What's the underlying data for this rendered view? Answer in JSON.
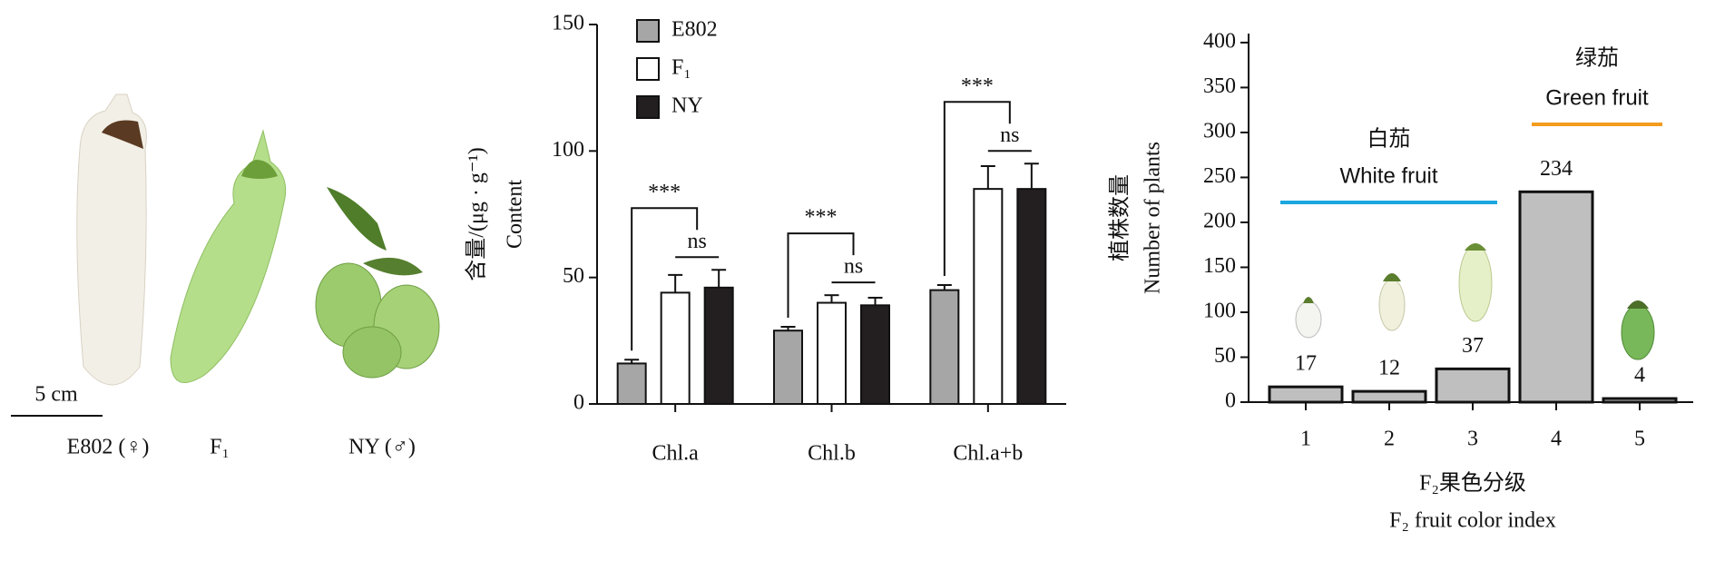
{
  "photo_panel": {
    "scale_bar": "5 cm",
    "labels": [
      "E802 (♀)",
      "F₁",
      "NY (♂)"
    ]
  },
  "chart_data": [
    {
      "type": "bar",
      "y_title": "含量/(μg · g⁻¹)",
      "y_title2": "Content",
      "categories": [
        "Chl.a",
        "Chl.b",
        "Chl.a+b"
      ],
      "series": [
        {
          "name": "E802",
          "color": "#a6a6a6",
          "values": [
            16,
            29,
            45
          ],
          "errors": [
            1.5,
            1.5,
            2
          ]
        },
        {
          "name": "F₁",
          "color": "#ffffff",
          "values": [
            44,
            40,
            85
          ],
          "errors": [
            7,
            3,
            9
          ]
        },
        {
          "name": "NY",
          "color": "#231f20",
          "values": [
            46,
            39,
            85
          ],
          "errors": [
            7,
            3,
            10
          ]
        }
      ],
      "comparisons": [
        {
          "vs_e802": "***",
          "f1_vs_ny": "ns"
        },
        {
          "vs_e802": "***",
          "f1_vs_ny": "ns"
        },
        {
          "vs_e802": "***",
          "f1_vs_ny": "ns"
        }
      ],
      "ylim": [
        0,
        150
      ],
      "yticks": [
        0,
        50,
        100,
        150
      ],
      "legend": "upper-left"
    },
    {
      "type": "bar",
      "y_title": "植株数量",
      "y_title2": "Number of plants",
      "x_title": "F₂果色分级",
      "x_title2": "F₂ fruit color index",
      "categories": [
        "1",
        "2",
        "3",
        "4",
        "5"
      ],
      "values": [
        17,
        12,
        37,
        234,
        4
      ],
      "color": "#bfbfbf",
      "ylim": [
        0,
        410
      ],
      "yticks": [
        0,
        50,
        100,
        150,
        200,
        250,
        300,
        350,
        400
      ],
      "groups": [
        {
          "label": "白茄",
          "label2": "White fruit",
          "color": "#1aa7e0"
        },
        {
          "label": "绿茄",
          "label2": "Green fruit",
          "color": "#f39c1f"
        }
      ]
    }
  ]
}
